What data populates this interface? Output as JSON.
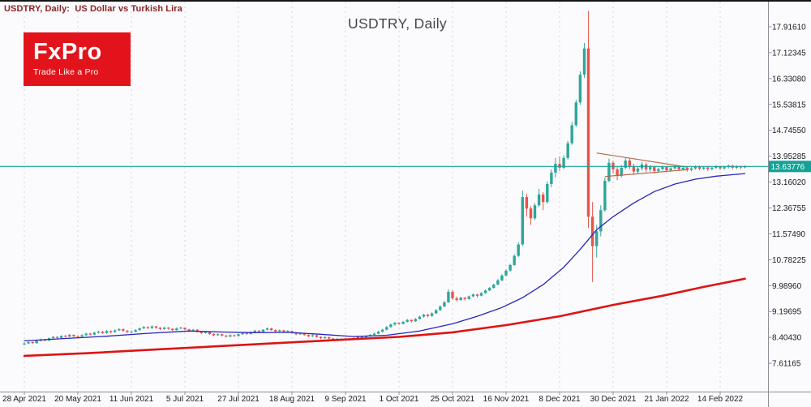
{
  "header": {
    "symbol_label": "USDTRY, Daily:  US Dollar vs Turkish Lira",
    "watermark": "USDTRY, Daily"
  },
  "logo": {
    "name": "FxPro",
    "tagline": "Trade Like a Pro",
    "bg_color": "#e3131b",
    "text_color": "#ffffff"
  },
  "price_axis": {
    "labels": [
      "17.91610",
      "17.12345",
      "16.33080",
      "15.53815",
      "14.74550",
      "13.95285",
      "13.16020",
      "12.36755",
      "11.57490",
      "10.78225",
      "9.98960",
      "9.19695",
      "8.40430",
      "7.61165"
    ],
    "current_price": "13.63776"
  },
  "time_axis": {
    "labels": [
      "28 Apr 2021",
      "20 May 2021",
      "11 Jun 2021",
      "5 Jul 2021",
      "27 Jul 2021",
      "18 Aug 2021",
      "9 Sep 2021",
      "1 Oct 2021",
      "25 Oct 2021",
      "16 Nov 2021",
      "8 Dec 2021",
      "30 Dec 2021",
      "21 Jan 2022",
      "14 Feb 2022"
    ]
  },
  "chart_data": {
    "type": "candlestick",
    "symbol": "USDTRY",
    "timeframe": "Daily",
    "title": "USDTRY, Daily",
    "ylim": [
      6.8,
      18.6
    ],
    "grid": "vertical-dashed",
    "price_ticks": [
      17.9161,
      17.12345,
      16.3308,
      15.53815,
      14.7455,
      13.95285,
      13.1602,
      12.36755,
      11.5749,
      10.78225,
      9.9896,
      9.19695,
      8.4043,
      7.61165
    ],
    "date_tick_indices": [
      0,
      13,
      26,
      39,
      52,
      65,
      78,
      91,
      104,
      117,
      130,
      143,
      156,
      169
    ],
    "current_price": 13.63776,
    "candles": [
      [
        8.19,
        8.25,
        8.16,
        8.22
      ],
      [
        8.22,
        8.29,
        8.2,
        8.26
      ],
      [
        8.26,
        8.28,
        8.2,
        8.23
      ],
      [
        8.23,
        8.32,
        8.21,
        8.3
      ],
      [
        8.3,
        8.37,
        8.28,
        8.34
      ],
      [
        8.34,
        8.36,
        8.28,
        8.31
      ],
      [
        8.31,
        8.4,
        8.29,
        8.38
      ],
      [
        8.38,
        8.45,
        8.36,
        8.42
      ],
      [
        8.42,
        8.44,
        8.36,
        8.39
      ],
      [
        8.39,
        8.47,
        8.37,
        8.45
      ],
      [
        8.45,
        8.48,
        8.4,
        8.43
      ],
      [
        8.43,
        8.51,
        8.41,
        8.48
      ],
      [
        8.48,
        8.5,
        8.41,
        8.44
      ],
      [
        8.44,
        8.47,
        8.39,
        8.43
      ],
      [
        8.43,
        8.5,
        8.41,
        8.47
      ],
      [
        8.47,
        8.55,
        8.45,
        8.52
      ],
      [
        8.52,
        8.54,
        8.46,
        8.49
      ],
      [
        8.49,
        8.58,
        8.47,
        8.55
      ],
      [
        8.55,
        8.61,
        8.52,
        8.58
      ],
      [
        8.58,
        8.6,
        8.51,
        8.54
      ],
      [
        8.54,
        8.63,
        8.52,
        8.6
      ],
      [
        8.6,
        8.62,
        8.53,
        8.57
      ],
      [
        8.57,
        8.65,
        8.55,
        8.62
      ],
      [
        8.62,
        8.69,
        8.6,
        8.66
      ],
      [
        8.66,
        8.68,
        8.58,
        8.61
      ],
      [
        8.61,
        8.63,
        8.54,
        8.57
      ],
      [
        8.57,
        8.62,
        8.54,
        8.58
      ],
      [
        8.58,
        8.66,
        8.56,
        8.63
      ],
      [
        8.63,
        8.71,
        8.61,
        8.68
      ],
      [
        8.68,
        8.75,
        8.66,
        8.72
      ],
      [
        8.72,
        8.74,
        8.66,
        8.69
      ],
      [
        8.69,
        8.77,
        8.67,
        8.74
      ],
      [
        8.74,
        8.76,
        8.67,
        8.7
      ],
      [
        8.7,
        8.72,
        8.63,
        8.66
      ],
      [
        8.66,
        8.73,
        8.64,
        8.7
      ],
      [
        8.7,
        8.72,
        8.64,
        8.67
      ],
      [
        8.67,
        8.69,
        8.6,
        8.63
      ],
      [
        8.63,
        8.71,
        8.61,
        8.68
      ],
      [
        8.68,
        8.73,
        8.66,
        8.7
      ],
      [
        8.7,
        8.71,
        8.62,
        8.65
      ],
      [
        8.65,
        8.67,
        8.58,
        8.61
      ],
      [
        8.61,
        8.67,
        8.59,
        8.64
      ],
      [
        8.64,
        8.66,
        8.55,
        8.58
      ],
      [
        8.58,
        8.6,
        8.51,
        8.54
      ],
      [
        8.54,
        8.6,
        8.52,
        8.57
      ],
      [
        8.57,
        8.59,
        8.48,
        8.51
      ],
      [
        8.51,
        8.53,
        8.44,
        8.47
      ],
      [
        8.47,
        8.53,
        8.45,
        8.5
      ],
      [
        8.5,
        8.52,
        8.43,
        8.46
      ],
      [
        8.46,
        8.48,
        8.4,
        8.43
      ],
      [
        8.43,
        8.5,
        8.41,
        8.47
      ],
      [
        8.47,
        8.49,
        8.42,
        8.45
      ],
      [
        8.45,
        8.52,
        8.43,
        8.5
      ],
      [
        8.5,
        8.57,
        8.48,
        8.54
      ],
      [
        8.54,
        8.56,
        8.48,
        8.51
      ],
      [
        8.51,
        8.59,
        8.49,
        8.57
      ],
      [
        8.57,
        8.64,
        8.55,
        8.61
      ],
      [
        8.61,
        8.63,
        8.55,
        8.58
      ],
      [
        8.58,
        8.66,
        8.56,
        8.64
      ],
      [
        8.64,
        8.71,
        8.62,
        8.68
      ],
      [
        8.68,
        8.7,
        8.61,
        8.63
      ],
      [
        8.63,
        8.65,
        8.56,
        8.59
      ],
      [
        8.59,
        8.65,
        8.57,
        8.62
      ],
      [
        8.62,
        8.64,
        8.55,
        8.58
      ],
      [
        8.58,
        8.63,
        8.56,
        8.6
      ],
      [
        8.6,
        8.61,
        8.52,
        8.55
      ],
      [
        8.55,
        8.57,
        8.47,
        8.5
      ],
      [
        8.5,
        8.56,
        8.48,
        8.53
      ],
      [
        8.53,
        8.55,
        8.45,
        8.48
      ],
      [
        8.48,
        8.5,
        8.41,
        8.44
      ],
      [
        8.44,
        8.5,
        8.42,
        8.47
      ],
      [
        8.47,
        8.49,
        8.39,
        8.42
      ],
      [
        8.42,
        8.44,
        8.35,
        8.38
      ],
      [
        8.38,
        8.44,
        8.36,
        8.41
      ],
      [
        8.41,
        8.43,
        8.34,
        8.37
      ],
      [
        8.37,
        8.39,
        8.3,
        8.33
      ],
      [
        8.33,
        8.39,
        8.31,
        8.36
      ],
      [
        8.36,
        8.38,
        8.31,
        8.34
      ],
      [
        8.34,
        8.4,
        8.32,
        8.37
      ],
      [
        8.37,
        8.39,
        8.31,
        8.34
      ],
      [
        8.34,
        8.41,
        8.32,
        8.38
      ],
      [
        8.38,
        8.45,
        8.36,
        8.42
      ],
      [
        8.42,
        8.44,
        8.37,
        8.4
      ],
      [
        8.4,
        8.47,
        8.38,
        8.44
      ],
      [
        8.44,
        8.51,
        8.42,
        8.48
      ],
      [
        8.48,
        8.55,
        8.46,
        8.52
      ],
      [
        8.52,
        8.61,
        8.5,
        8.58
      ],
      [
        8.58,
        8.67,
        8.56,
        8.64
      ],
      [
        8.64,
        8.75,
        8.62,
        8.72
      ],
      [
        8.72,
        8.83,
        8.7,
        8.8
      ],
      [
        8.8,
        8.88,
        8.76,
        8.85
      ],
      [
        8.85,
        8.87,
        8.79,
        8.82
      ],
      [
        8.82,
        8.91,
        8.8,
        8.88
      ],
      [
        8.88,
        8.97,
        8.86,
        8.94
      ],
      [
        8.94,
        8.96,
        8.86,
        8.9
      ],
      [
        8.9,
        9.0,
        8.88,
        8.97
      ],
      [
        8.97,
        9.07,
        8.95,
        9.04
      ],
      [
        9.04,
        9.13,
        9.01,
        9.1
      ],
      [
        9.1,
        9.12,
        9.02,
        9.06
      ],
      [
        9.06,
        9.17,
        9.04,
        9.14
      ],
      [
        9.14,
        9.27,
        9.12,
        9.24
      ],
      [
        9.24,
        9.39,
        9.22,
        9.35
      ],
      [
        9.35,
        9.52,
        9.33,
        9.48
      ],
      [
        9.48,
        9.88,
        9.46,
        9.8
      ],
      [
        9.8,
        9.85,
        9.55,
        9.6
      ],
      [
        9.6,
        9.66,
        9.5,
        9.55
      ],
      [
        9.55,
        9.65,
        9.53,
        9.62
      ],
      [
        9.62,
        9.64,
        9.53,
        9.58
      ],
      [
        9.58,
        9.69,
        9.56,
        9.66
      ],
      [
        9.66,
        9.75,
        9.64,
        9.72
      ],
      [
        9.72,
        9.74,
        9.63,
        9.68
      ],
      [
        9.68,
        9.79,
        9.66,
        9.76
      ],
      [
        9.76,
        9.87,
        9.74,
        9.84
      ],
      [
        9.84,
        9.95,
        9.82,
        9.92
      ],
      [
        9.92,
        10.05,
        9.9,
        10.02
      ],
      [
        10.02,
        10.19,
        10.0,
        10.15
      ],
      [
        10.15,
        10.34,
        10.12,
        10.3
      ],
      [
        10.3,
        10.49,
        10.27,
        10.45
      ],
      [
        10.45,
        10.66,
        10.42,
        10.62
      ],
      [
        10.62,
        10.95,
        10.6,
        10.9
      ],
      [
        10.9,
        11.32,
        10.87,
        11.25
      ],
      [
        11.25,
        12.9,
        11.2,
        12.7
      ],
      [
        12.7,
        12.8,
        12.1,
        12.35
      ],
      [
        12.35,
        12.42,
        11.85,
        12.05
      ],
      [
        12.05,
        12.52,
        12.0,
        12.45
      ],
      [
        12.45,
        12.95,
        12.4,
        12.78
      ],
      [
        12.78,
        12.85,
        12.3,
        12.55
      ],
      [
        12.55,
        13.18,
        12.5,
        13.1
      ],
      [
        13.1,
        13.55,
        13.0,
        13.45
      ],
      [
        13.45,
        13.9,
        13.3,
        13.72
      ],
      [
        13.72,
        13.95,
        13.5,
        13.6
      ],
      [
        13.6,
        13.98,
        13.55,
        13.9
      ],
      [
        13.9,
        14.42,
        13.85,
        14.35
      ],
      [
        14.35,
        15.0,
        14.3,
        14.9
      ],
      [
        14.9,
        15.68,
        14.85,
        15.6
      ],
      [
        15.6,
        16.55,
        15.52,
        16.45
      ],
      [
        16.45,
        17.42,
        16.35,
        17.25
      ],
      [
        17.25,
        18.4,
        11.75,
        12.1
      ],
      [
        12.1,
        12.55,
        10.1,
        11.2
      ],
      [
        11.2,
        11.85,
        10.85,
        11.65
      ],
      [
        11.65,
        12.45,
        11.5,
        12.3
      ],
      [
        12.3,
        13.3,
        12.25,
        13.2
      ],
      [
        13.2,
        13.88,
        13.15,
        13.75
      ],
      [
        13.75,
        13.82,
        13.42,
        13.55
      ],
      [
        13.55,
        13.62,
        13.22,
        13.35
      ],
      [
        13.35,
        13.68,
        13.3,
        13.6
      ],
      [
        13.6,
        13.92,
        13.55,
        13.82
      ],
      [
        13.82,
        13.88,
        13.55,
        13.65
      ],
      [
        13.65,
        13.72,
        13.38,
        13.48
      ],
      [
        13.48,
        13.64,
        13.42,
        13.58
      ],
      [
        13.58,
        13.78,
        13.52,
        13.7
      ],
      [
        13.7,
        13.76,
        13.46,
        13.55
      ],
      [
        13.55,
        13.68,
        13.48,
        13.62
      ],
      [
        13.62,
        13.66,
        13.42,
        13.5
      ],
      [
        13.5,
        13.6,
        13.46,
        13.56
      ],
      [
        13.56,
        13.66,
        13.52,
        13.62
      ],
      [
        13.62,
        13.65,
        13.47,
        13.52
      ],
      [
        13.52,
        13.62,
        13.48,
        13.58
      ],
      [
        13.58,
        13.68,
        13.54,
        13.64
      ],
      [
        13.64,
        13.67,
        13.5,
        13.55
      ],
      [
        13.55,
        13.64,
        13.51,
        13.6
      ],
      [
        13.6,
        13.63,
        13.48,
        13.53
      ],
      [
        13.53,
        13.62,
        13.49,
        13.58
      ],
      [
        13.58,
        13.67,
        13.54,
        13.63
      ],
      [
        13.63,
        13.66,
        13.52,
        13.57
      ],
      [
        13.57,
        13.65,
        13.53,
        13.61
      ],
      [
        13.61,
        13.64,
        13.5,
        13.56
      ],
      [
        13.56,
        13.63,
        13.52,
        13.6
      ],
      [
        13.6,
        13.68,
        13.56,
        13.64
      ],
      [
        13.64,
        13.66,
        13.53,
        13.58
      ],
      [
        13.58,
        13.65,
        13.54,
        13.62
      ],
      [
        13.62,
        13.7,
        13.58,
        13.66
      ],
      [
        13.66,
        13.69,
        13.55,
        13.6
      ],
      [
        13.6,
        13.67,
        13.56,
        13.64
      ],
      [
        13.64,
        13.66,
        13.55,
        13.61
      ],
      [
        13.61,
        13.67,
        13.58,
        13.64
      ]
    ],
    "ma_fast": {
      "name": "fast-moving-average",
      "color": "#2626bb",
      "points": [
        [
          0,
          8.3
        ],
        [
          10,
          8.37
        ],
        [
          20,
          8.44
        ],
        [
          30,
          8.53
        ],
        [
          40,
          8.6
        ],
        [
          48,
          8.57
        ],
        [
          56,
          8.55
        ],
        [
          64,
          8.56
        ],
        [
          72,
          8.5
        ],
        [
          80,
          8.43
        ],
        [
          88,
          8.47
        ],
        [
          96,
          8.6
        ],
        [
          104,
          8.82
        ],
        [
          110,
          9.05
        ],
        [
          116,
          9.32
        ],
        [
          121,
          9.62
        ],
        [
          126,
          10.02
        ],
        [
          131,
          10.55
        ],
        [
          135,
          11.1
        ],
        [
          139,
          11.7
        ],
        [
          143,
          12.1
        ],
        [
          148,
          12.52
        ],
        [
          153,
          12.87
        ],
        [
          158,
          13.1
        ],
        [
          163,
          13.25
        ],
        [
          168,
          13.34
        ],
        [
          175,
          13.42
        ]
      ]
    },
    "ma_slow": {
      "name": "slow-moving-average",
      "color": "#dd1414",
      "points": [
        [
          0,
          7.84
        ],
        [
          15,
          7.92
        ],
        [
          30,
          8.02
        ],
        [
          45,
          8.12
        ],
        [
          60,
          8.22
        ],
        [
          75,
          8.32
        ],
        [
          91,
          8.42
        ],
        [
          104,
          8.56
        ],
        [
          117,
          8.78
        ],
        [
          130,
          9.05
        ],
        [
          143,
          9.4
        ],
        [
          155,
          9.68
        ],
        [
          165,
          9.95
        ],
        [
          175,
          10.2
        ]
      ]
    },
    "pattern_lines": [
      {
        "from": [
          139,
          14.05
        ],
        "to": [
          161,
          13.62
        ]
      },
      {
        "from": [
          141,
          13.33
        ],
        "to": [
          161,
          13.54
        ]
      }
    ],
    "colors": {
      "up": "#2fa69a",
      "down": "#e8544a",
      "grid": "#d3d3de",
      "axis": "#8f8f98",
      "text": "#1c1c22",
      "price_line": "#12a297",
      "pattern": "#b4694b",
      "background": "#fbfbfd"
    }
  }
}
